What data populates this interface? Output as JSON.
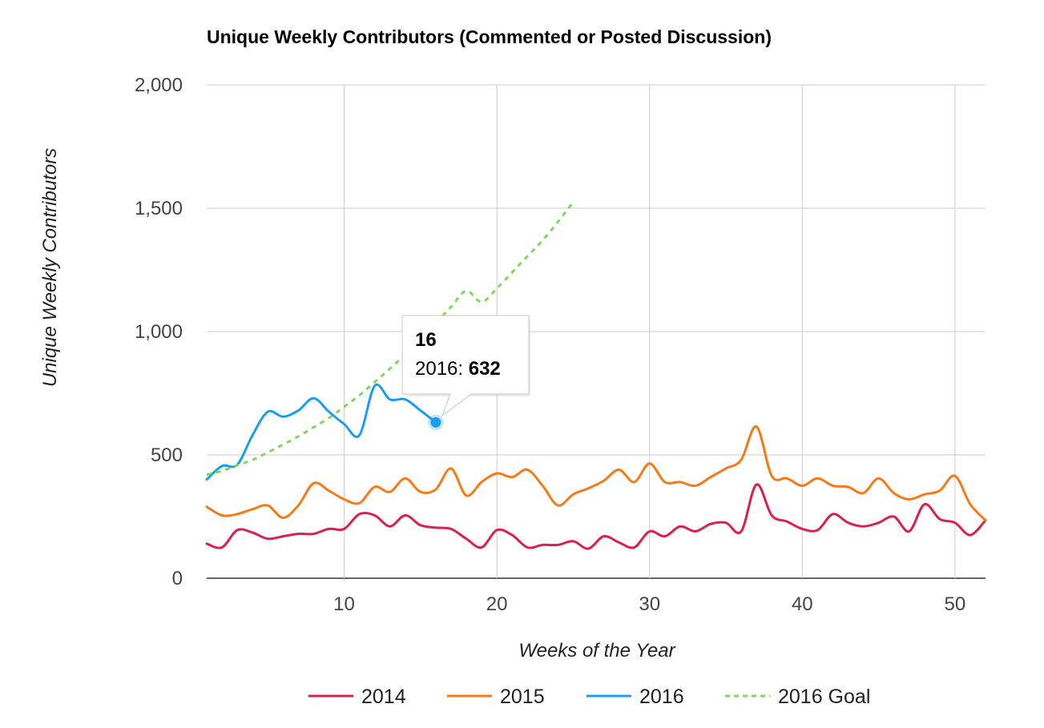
{
  "chart_data": {
    "type": "line",
    "title": "Unique Weekly Contributors (Commented or Posted Discussion)",
    "xlabel": "Weeks of the Year",
    "ylabel": "Unique Weekly Contributors",
    "xlim": [
      1,
      52
    ],
    "ylim": [
      0,
      2000
    ],
    "x_ticks": [
      10,
      20,
      30,
      40,
      50
    ],
    "y_ticks": [
      0,
      500,
      1000,
      1500,
      2000
    ],
    "y_tick_labels": [
      "0",
      "500",
      "1,000",
      "1,500",
      "2,000"
    ],
    "x_tick_labels": [
      "10",
      "20",
      "30",
      "40",
      "50"
    ],
    "grid": true,
    "legend_position": "bottom",
    "series": [
      {
        "name": "2014",
        "color": "#dc1f4d",
        "style": "solid",
        "x": [
          1,
          2,
          3,
          4,
          5,
          6,
          7,
          8,
          9,
          10,
          11,
          12,
          13,
          14,
          15,
          16,
          17,
          18,
          19,
          20,
          21,
          22,
          23,
          24,
          25,
          26,
          27,
          28,
          29,
          30,
          31,
          32,
          33,
          34,
          35,
          36,
          37,
          38,
          39,
          40,
          41,
          42,
          43,
          44,
          45,
          46,
          47,
          48,
          49,
          50,
          51,
          52
        ],
        "values": [
          140,
          125,
          195,
          185,
          160,
          170,
          180,
          180,
          200,
          200,
          260,
          255,
          210,
          255,
          215,
          205,
          200,
          160,
          125,
          195,
          175,
          125,
          135,
          135,
          150,
          120,
          170,
          145,
          125,
          190,
          170,
          210,
          190,
          220,
          225,
          190,
          380,
          255,
          230,
          200,
          195,
          260,
          225,
          210,
          225,
          250,
          190,
          300,
          240,
          225,
          175,
          235
        ]
      },
      {
        "name": "2015",
        "color": "#f47b16",
        "style": "solid",
        "x": [
          1,
          2,
          3,
          4,
          5,
          6,
          7,
          8,
          9,
          10,
          11,
          12,
          13,
          14,
          15,
          16,
          17,
          18,
          19,
          20,
          21,
          22,
          23,
          24,
          25,
          26,
          27,
          28,
          29,
          30,
          31,
          32,
          33,
          34,
          35,
          36,
          37,
          38,
          39,
          40,
          41,
          42,
          43,
          44,
          45,
          46,
          47,
          48,
          49,
          50,
          51,
          52
        ],
        "values": [
          290,
          255,
          260,
          280,
          295,
          245,
          295,
          385,
          355,
          320,
          305,
          370,
          350,
          405,
          350,
          360,
          445,
          335,
          390,
          425,
          410,
          440,
          375,
          295,
          340,
          365,
          395,
          440,
          390,
          465,
          390,
          390,
          375,
          410,
          445,
          480,
          615,
          415,
          405,
          375,
          405,
          375,
          370,
          345,
          405,
          345,
          320,
          340,
          355,
          415,
          300,
          235
        ]
      },
      {
        "name": "2016",
        "color": "#1b9ef0",
        "style": "solid",
        "x": [
          1,
          2,
          3,
          4,
          5,
          6,
          7,
          8,
          9,
          10,
          11,
          12,
          13,
          14,
          15,
          16
        ],
        "values": [
          400,
          455,
          460,
          580,
          675,
          655,
          680,
          730,
          675,
          625,
          580,
          780,
          725,
          725,
          680,
          632
        ]
      },
      {
        "name": "2016 Goal",
        "color": "#7ed85c",
        "style": "dashed",
        "x": [
          1,
          2,
          3,
          4,
          5,
          6,
          7,
          8,
          9,
          10,
          11,
          12,
          13,
          14,
          15,
          16,
          17,
          18,
          19,
          20,
          21,
          22,
          23,
          24,
          25
        ],
        "values": [
          420,
          435,
          458,
          480,
          510,
          542,
          575,
          612,
          650,
          695,
          742,
          795,
          850,
          908,
          970,
          1035,
          1100,
          1165,
          1120,
          1175,
          1240,
          1305,
          1370,
          1445,
          1525
        ]
      }
    ],
    "tooltip": {
      "series": "2016",
      "x": 16,
      "value": 632,
      "heading": "16",
      "label_prefix": "2016: ",
      "value_label": "632"
    }
  }
}
